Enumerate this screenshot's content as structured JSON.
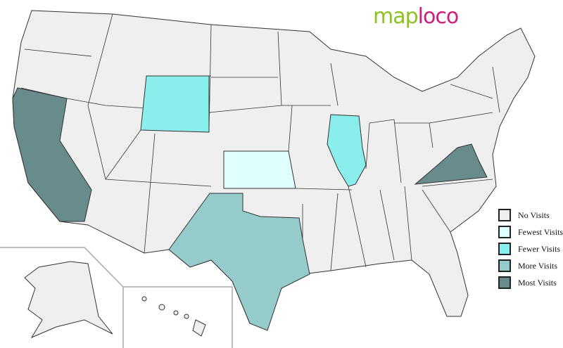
{
  "logo": {
    "part1": "map",
    "part2": "loco"
  },
  "legend": [
    {
      "label": "No Visits",
      "color": "#efefef"
    },
    {
      "label": "Fewest Visits",
      "color": "#e0ffff"
    },
    {
      "label": "Fewer Visits",
      "color": "#8aeeed"
    },
    {
      "label": "More Visits",
      "color": "#96cbcb"
    },
    {
      "label": "Most Visits",
      "color": "#678c8b"
    }
  ],
  "states": {
    "California": "Most Visits",
    "Virginia": "Most Visits",
    "Texas": "More Visits",
    "Wyoming": "Fewer Visits",
    "Illinois": "Fewer Visits",
    "Kansas": "Fewest Visits"
  }
}
